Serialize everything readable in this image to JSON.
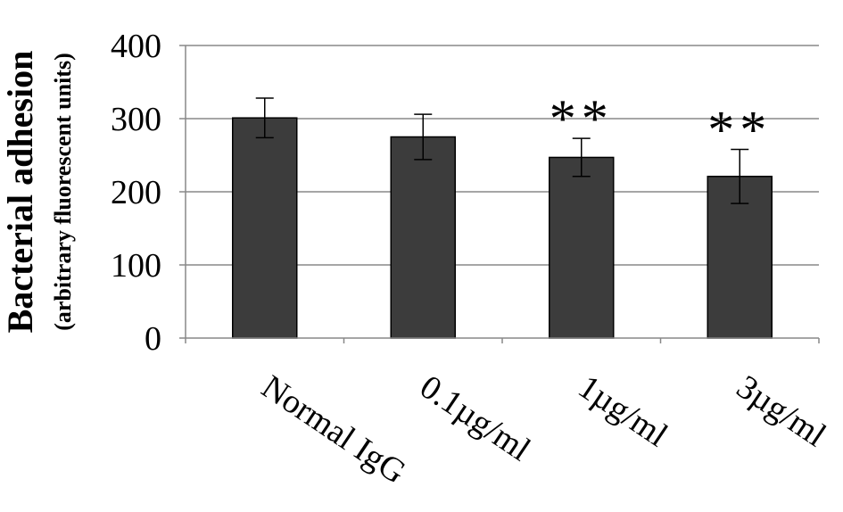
{
  "chart_data": {
    "type": "bar",
    "title": "",
    "ylabel": "Bacterial adhesion",
    "ylabel_sub": "(arbitrary fluorescent units)",
    "xlabel": "",
    "categories": [
      "Normal IgG",
      "0.1µg/ml",
      "1µg/ml",
      "3µg/ml"
    ],
    "values": [
      301,
      275,
      247,
      221
    ],
    "errors": [
      27,
      31,
      26,
      37
    ],
    "annotations": [
      "",
      "",
      "**",
      "**"
    ],
    "ylim": [
      0,
      400
    ],
    "yticks": [
      "0",
      "100",
      "200",
      "300",
      "400"
    ],
    "grid": true,
    "legend": "none",
    "colors": {
      "bar": "#3c3c3c",
      "grid": "#888888",
      "axis": "#888888",
      "text": "#000000"
    }
  }
}
